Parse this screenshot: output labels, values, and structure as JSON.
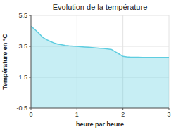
{
  "chart_data": {
    "type": "area",
    "title": "Evolution de la température",
    "xlabel": "heure par heure",
    "ylabel": "Température en °C",
    "x": [
      0,
      0.08,
      0.17,
      0.25,
      0.33,
      0.42,
      0.5,
      0.58,
      0.67,
      0.75,
      0.83,
      0.92,
      1.0,
      1.08,
      1.17,
      1.25,
      1.33,
      1.42,
      1.5,
      1.58,
      1.67,
      1.75,
      1.83,
      1.92,
      2.0,
      2.08,
      2.17,
      2.25,
      2.33,
      2.42,
      2.5,
      2.58,
      2.67,
      2.75,
      2.83,
      2.92,
      3.0
    ],
    "y": [
      4.8,
      4.6,
      4.35,
      4.1,
      3.95,
      3.82,
      3.72,
      3.65,
      3.6,
      3.56,
      3.53,
      3.51,
      3.5,
      3.48,
      3.46,
      3.44,
      3.42,
      3.4,
      3.38,
      3.36,
      3.33,
      3.3,
      3.15,
      3.0,
      2.85,
      2.82,
      2.8,
      2.79,
      2.79,
      2.78,
      2.78,
      2.78,
      2.78,
      2.78,
      2.78,
      2.78,
      2.78
    ],
    "color": "#5ecde0",
    "xlim": [
      0,
      3
    ],
    "ylim": [
      -0.5,
      5.5
    ],
    "xticks": [
      0,
      1,
      2,
      3
    ],
    "yticks": [
      -0.5,
      1.5,
      3.5,
      5.5
    ],
    "grid": true
  }
}
